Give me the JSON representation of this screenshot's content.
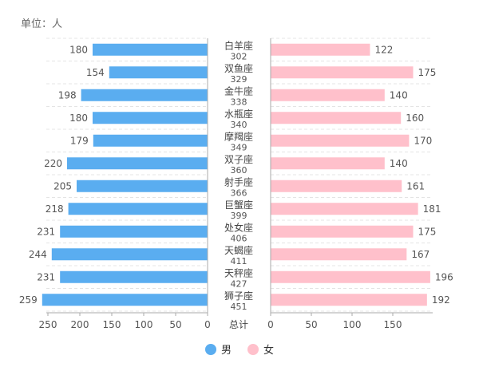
{
  "unit_label": "单位：人",
  "total_label": "总计",
  "colors": {
    "male": "#5aadf0",
    "female": "#ffc0cb"
  },
  "chart_data": {
    "type": "bar",
    "orientation": "horizontal-butterfly",
    "categories": [
      "白羊座",
      "双鱼座",
      "金牛座",
      "水瓶座",
      "摩羯座",
      "双子座",
      "射手座",
      "巨蟹座",
      "处女座",
      "天蝎座",
      "天秤座",
      "狮子座"
    ],
    "totals": [
      302,
      329,
      338,
      340,
      349,
      360,
      366,
      399,
      406,
      411,
      427,
      451
    ],
    "series": [
      {
        "name": "男",
        "values": [
          180,
          154,
          198,
          180,
          179,
          220,
          205,
          218,
          231,
          244,
          231,
          259
        ]
      },
      {
        "name": "女",
        "values": [
          122,
          175,
          140,
          160,
          170,
          140,
          161,
          181,
          175,
          167,
          196,
          192
        ]
      }
    ],
    "left_axis": {
      "range": [
        0,
        250
      ],
      "ticks": [
        250,
        200,
        150,
        100,
        50,
        0
      ]
    },
    "right_axis": {
      "range": [
        0,
        150
      ],
      "ticks": [
        0,
        50,
        100,
        150
      ]
    },
    "legend_position": "bottom-center",
    "grid": true
  }
}
